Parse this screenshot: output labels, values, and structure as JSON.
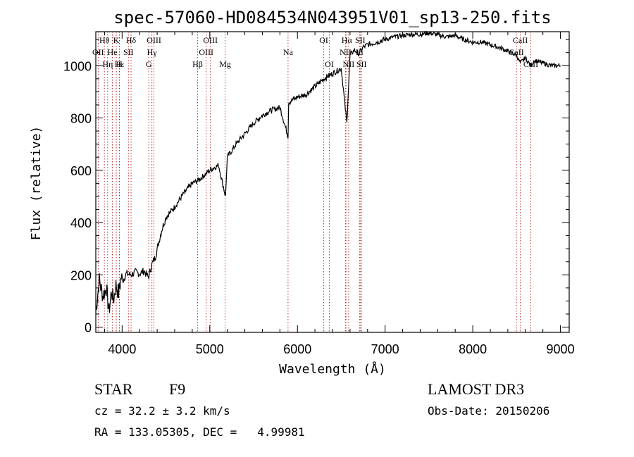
{
  "chart_data": {
    "type": "line",
    "title": "spec-57060-HD084534N043951V01_sp13-250.fits",
    "xlabel": "Wavelength (Å)",
    "ylabel": "Flux (relative)",
    "xlim": [
      3700,
      9100
    ],
    "ylim": [
      -20,
      1130
    ],
    "xticks": [
      4000,
      5000,
      6000,
      7000,
      8000,
      9000
    ],
    "yticks": [
      0,
      200,
      400,
      600,
      800,
      1000
    ],
    "series": [
      {
        "name": "flux",
        "x": [
          3700,
          3740,
          3780,
          3820,
          3850,
          3880,
          3900,
          3930,
          3960,
          3990,
          4010,
          4050,
          4100,
          4150,
          4200,
          4250,
          4300,
          4340,
          4380,
          4450,
          4500,
          4600,
          4700,
          4800,
          4860,
          4900,
          5000,
          5100,
          5180,
          5200,
          5300,
          5400,
          5500,
          5600,
          5700,
          5800,
          5893,
          5900,
          6000,
          6100,
          6200,
          6300,
          6400,
          6500,
          6563,
          6600,
          6650,
          6700,
          6750,
          6800,
          6900,
          7000,
          7100,
          7200,
          7300,
          7400,
          7500,
          7600,
          7700,
          7800,
          7900,
          8000,
          8100,
          8200,
          8300,
          8400,
          8500,
          8542,
          8600,
          8662,
          8700,
          8800,
          8900,
          9000
        ],
        "y": [
          60,
          180,
          120,
          150,
          60,
          140,
          100,
          160,
          130,
          190,
          180,
          205,
          200,
          210,
          205,
          215,
          190,
          240,
          270,
          370,
          420,
          460,
          510,
          550,
          560,
          570,
          600,
          620,
          500,
          650,
          700,
          740,
          780,
          810,
          830,
          840,
          730,
          860,
          880,
          890,
          920,
          950,
          970,
          990,
          780,
          1040,
          1060,
          1045,
          1070,
          1080,
          1090,
          1100,
          1110,
          1115,
          1120,
          1120,
          1125,
          1118,
          1110,
          1115,
          1100,
          1090,
          1090,
          1080,
          1070,
          1055,
          1040,
          1010,
          1030,
          1000,
          1020,
          1010,
          1000,
          1000
        ]
      }
    ],
    "lines": [
      {
        "name": "Hθ",
        "x": 3798,
        "row": 1
      },
      {
        "name": "OII",
        "x": 3727,
        "row": 2
      },
      {
        "name": "Hη",
        "x": 3835,
        "row": 3
      },
      {
        "name": "He",
        "x": 3889,
        "row": 2
      },
      {
        "name": "K",
        "x": 3934,
        "row": 1
      },
      {
        "name": "Hε",
        "x": 3970,
        "row": 3
      },
      {
        "name": "SII",
        "x": 4072,
        "row": 2
      },
      {
        "name": "H",
        "x": 3968,
        "row": 3
      },
      {
        "name": "Hδ",
        "x": 4102,
        "row": 1
      },
      {
        "name": "OIII",
        "x": 4363,
        "row": 1
      },
      {
        "name": "Hγ",
        "x": 4340,
        "row": 2
      },
      {
        "name": "G",
        "x": 4304,
        "row": 3
      },
      {
        "name": "Hβ",
        "x": 4861,
        "row": 3
      },
      {
        "name": "OIII",
        "x": 5007,
        "row": 1
      },
      {
        "name": "OIII",
        "x": 4959,
        "row": 2
      },
      {
        "name": "Mg",
        "x": 5175,
        "row": 3
      },
      {
        "name": "Na",
        "x": 5893,
        "row": 2
      },
      {
        "name": "OI",
        "x": 6300,
        "row": 1
      },
      {
        "name": "OI",
        "x": 6364,
        "row": 3
      },
      {
        "name": "Hα",
        "x": 6563,
        "row": 1
      },
      {
        "name": "SII",
        "x": 6716,
        "row": 1
      },
      {
        "name": "NII",
        "x": 6548,
        "row": 2
      },
      {
        "name": "Li",
        "x": 6708,
        "row": 2
      },
      {
        "name": "NII",
        "x": 6584,
        "row": 3
      },
      {
        "name": "SII",
        "x": 6731,
        "row": 3
      },
      {
        "name": "CaII",
        "x": 8542,
        "row": 1
      },
      {
        "name": "CaII",
        "x": 8498,
        "row": 2
      },
      {
        "name": "CaII",
        "x": 8662,
        "row": 3
      }
    ]
  },
  "footer": {
    "object_class": "STAR",
    "subclass": "F9",
    "survey": "LAMOST DR3",
    "redshift": "cz = 32.2 ± 3.2 km/s",
    "obs_date": "Obs-Date: 20150206",
    "coords": "RA = 133.05305, DEC =   4.99981"
  }
}
